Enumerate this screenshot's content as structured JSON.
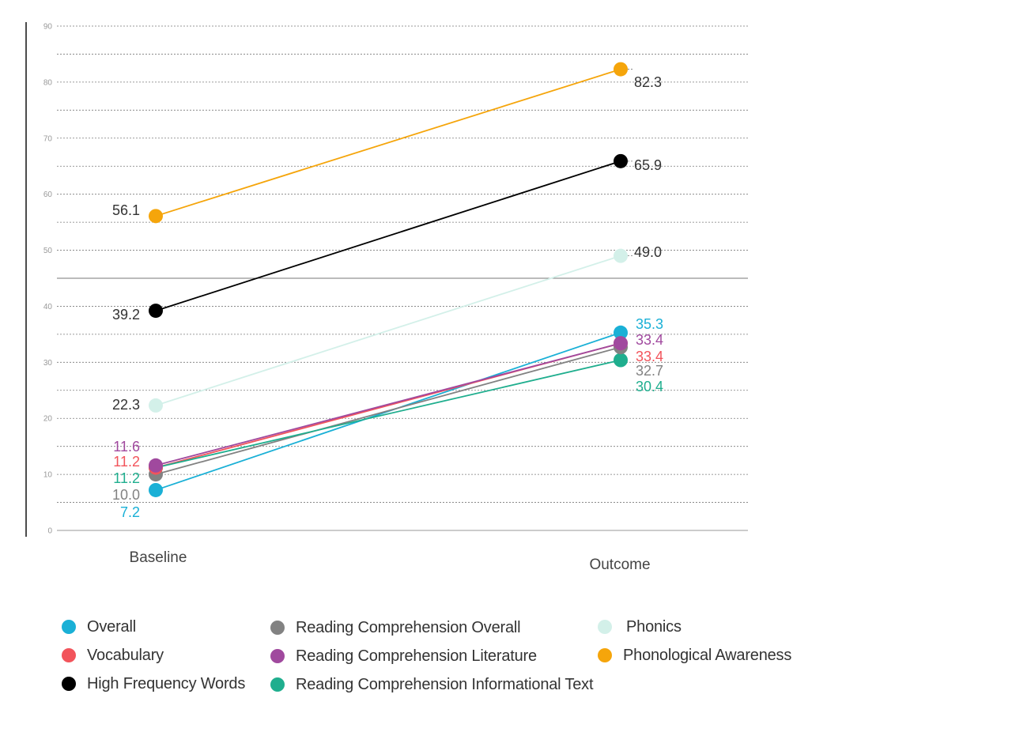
{
  "chart_data": {
    "type": "line",
    "categories": [
      "Baseline",
      "Outcome"
    ],
    "ylim": [
      0,
      90
    ],
    "yticks": [
      0,
      10,
      20,
      30,
      40,
      50,
      60,
      70,
      80,
      90
    ],
    "grid": true,
    "series": [
      {
        "name": "Overall",
        "color": "#1ab0d6",
        "values": [
          7.2,
          35.3
        ],
        "labels": [
          "7.2",
          "35.3"
        ]
      },
      {
        "name": "Vocabulary",
        "color": "#f2545b",
        "values": [
          11.2,
          33.4
        ],
        "labels": [
          "11.2",
          "33.4"
        ]
      },
      {
        "name": "High Frequency Words",
        "color": "#000000",
        "values": [
          39.2,
          65.9
        ],
        "labels": [
          "39.2",
          "65.9"
        ]
      },
      {
        "name": "Reading Comprehension Overall",
        "color": "#828282",
        "values": [
          10.0,
          32.7
        ],
        "labels": [
          "10.0",
          "32.7"
        ]
      },
      {
        "name": "Reading Comprehension Literature",
        "color": "#a0499e",
        "values": [
          11.6,
          33.4
        ],
        "labels": [
          "11.6",
          "33.4"
        ]
      },
      {
        "name": "Reading Comprehension Informational Text",
        "color": "#1fae8e",
        "values": [
          11.2,
          30.4
        ],
        "labels": [
          "11.2",
          "30.4"
        ]
      },
      {
        "name": "Phonics",
        "color": "#d3f0e9",
        "values": [
          22.3,
          49.0
        ],
        "labels": [
          "22.3",
          "49.0"
        ]
      },
      {
        "name": "Phonological Awareness",
        "color": "#f5a50b",
        "values": [
          56.1,
          82.3
        ],
        "labels": [
          "56.1",
          "82.3"
        ]
      }
    ]
  },
  "legend": {
    "items": [
      {
        "label": "Overall",
        "color": "#1ab0d6"
      },
      {
        "label": "Vocabulary",
        "color": "#f2545b"
      },
      {
        "label": "High Frequency Words",
        "color": "#000000"
      },
      {
        "label": "Reading Comprehension Overall",
        "color": "#828282"
      },
      {
        "label": "Reading Comprehension Literature",
        "color": "#a0499e"
      },
      {
        "label": "Reading Comprehension Informational Text",
        "color": "#1fae8e"
      },
      {
        "label": "Phonics",
        "color": "#d3f0e9"
      },
      {
        "label": "Phonological Awareness",
        "color": "#f5a50b"
      }
    ]
  }
}
